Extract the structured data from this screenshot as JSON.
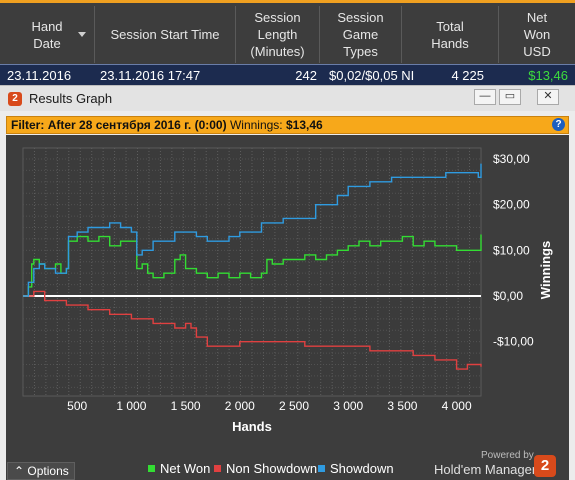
{
  "table": {
    "headers": [
      {
        "label": "Hand\nDate"
      },
      {
        "label": "Session Start Time"
      },
      {
        "label": "Session\nLength\n(Minutes)"
      },
      {
        "label": "Session\nGame\nTypes"
      },
      {
        "label": "Total\nHands"
      },
      {
        "label": "Net\nWon\nUSD"
      }
    ],
    "row": {
      "hand_date": "23.11.2016",
      "start_time": "23.11.2016 17:47",
      "length": "242",
      "game_types": "$0,02/$0,05 NI",
      "total_hands": "4 225",
      "net_won": "$13,46"
    },
    "net_won_color": "#3ddc3d"
  },
  "window": {
    "title": "Results Graph",
    "app_icon": "2",
    "buttons": {
      "minimize": "—",
      "restore": "▭",
      "close": "✕"
    }
  },
  "filter": {
    "key": "Filter:",
    "value": "After 28 сентября 2016 г. (0:00)",
    "winnings_label": "Winnings:",
    "winnings_value": "$13,46",
    "help": "?"
  },
  "chart_data": {
    "type": "line",
    "xlabel": "Hands",
    "ylabel": "Winnings",
    "xlim": [
      0,
      4225
    ],
    "ylim": [
      -22,
      32
    ],
    "x_ticks": [
      500,
      1000,
      1500,
      2000,
      2500,
      3000,
      3500,
      4000
    ],
    "x_tick_labels": [
      "500",
      "1 000",
      "1 500",
      "2 000",
      "2 500",
      "3 000",
      "3 500",
      "4 000"
    ],
    "y_ticks": [
      30,
      20,
      10,
      0,
      -10
    ],
    "y_tick_labels": [
      "$30,00",
      "$20,00",
      "$10,00",
      "$0,00",
      "-$10,00"
    ],
    "grid": true,
    "series": [
      {
        "name": "Net Won",
        "color": "#33dd33",
        "x": [
          0,
          50,
          80,
          100,
          150,
          200,
          300,
          350,
          400,
          420,
          500,
          550,
          600,
          700,
          800,
          900,
          1000,
          1050,
          1100,
          1150,
          1200,
          1300,
          1400,
          1450,
          1500,
          1600,
          1700,
          1800,
          1900,
          2000,
          2100,
          2200,
          2250,
          2300,
          2400,
          2500,
          2600,
          2700,
          2800,
          2900,
          3000,
          3100,
          3200,
          3300,
          3400,
          3500,
          3600,
          3700,
          3800,
          3900,
          4000,
          4100,
          4200,
          4225
        ],
        "values": [
          0,
          2,
          7,
          8,
          7,
          6,
          7,
          5,
          6,
          12,
          13,
          13,
          12,
          13,
          11,
          12,
          12,
          6,
          7,
          5,
          4,
          5,
          8,
          9,
          6,
          5,
          4,
          5,
          4,
          5,
          4,
          5,
          8,
          7,
          8,
          8,
          9,
          8,
          9,
          10,
          11,
          12,
          11,
          12,
          12,
          13,
          11,
          12,
          11,
          11,
          10,
          10,
          10,
          13.46
        ]
      },
      {
        "name": "Non Showdown",
        "color": "#e04040",
        "x": [
          0,
          100,
          200,
          300,
          400,
          500,
          600,
          700,
          800,
          900,
          1000,
          1100,
          1200,
          1300,
          1400,
          1500,
          1550,
          1600,
          1700,
          1800,
          1900,
          2000,
          2200,
          2400,
          2600,
          2800,
          3000,
          3200,
          3400,
          3600,
          3800,
          3900,
          4000,
          4100,
          4225
        ],
        "values": [
          0,
          1,
          -1,
          -1,
          -2,
          -2,
          -3,
          -3,
          -4,
          -4,
          -5,
          -5,
          -6,
          -6,
          -7,
          -6,
          -7,
          -9,
          -11,
          -11,
          -11,
          -10,
          -10,
          -10,
          -11,
          -11,
          -11,
          -12,
          -12,
          -13,
          -14,
          -14,
          -16,
          -15,
          -15.5
        ]
      },
      {
        "name": "Showdown",
        "color": "#2f9be0",
        "x": [
          0,
          50,
          100,
          150,
          200,
          300,
          400,
          420,
          500,
          600,
          700,
          800,
          900,
          1000,
          1050,
          1100,
          1200,
          1300,
          1400,
          1500,
          1600,
          1700,
          1800,
          1900,
          2000,
          2200,
          2400,
          2500,
          2700,
          2900,
          3000,
          3100,
          3200,
          3300,
          3400,
          3500,
          3600,
          3800,
          3900,
          4000,
          4100,
          4200,
          4225
        ],
        "values": [
          0,
          3,
          6,
          7,
          6,
          5,
          6,
          13,
          14,
          15,
          15,
          16,
          15,
          14,
          9,
          10,
          12,
          12,
          14,
          14,
          13,
          12,
          12,
          13,
          14,
          16,
          17,
          17,
          20,
          22,
          24,
          24,
          25,
          25,
          26,
          26,
          26,
          26,
          27,
          27,
          27,
          26,
          29
        ]
      }
    ]
  },
  "footer": {
    "options": "Options",
    "options_icon": "chevron-up-icon",
    "legend": [
      "Net Won",
      "Non Showdown",
      "Showdown"
    ],
    "powered_by": "Powered by",
    "brand": "Hold'em Manager",
    "brand_logo": "2"
  }
}
